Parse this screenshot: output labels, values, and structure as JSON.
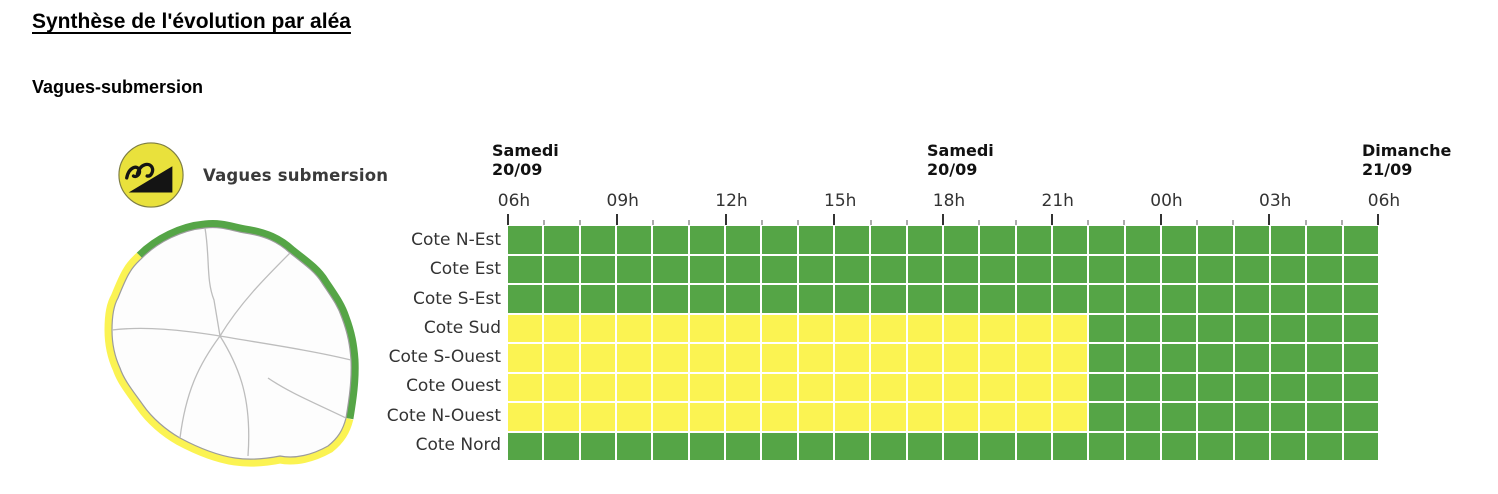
{
  "page": {
    "title": "Synthèse de l'évolution par aléa",
    "subtitle": "Vagues-submersion"
  },
  "hazard": {
    "label": "Vagues submersion",
    "icon": "waves-submersion-icon",
    "icon_circle_color": "#e9e13c",
    "icon_glyph_color": "#141414"
  },
  "chart_data": {
    "type": "heatmap",
    "x_unit": "hour",
    "hours_total": 24,
    "grid_line_color": "#ffffff",
    "date_headers": [
      {
        "day": "Samedi",
        "date": "20/09",
        "hour_index": 0
      },
      {
        "day": "Samedi",
        "date": "20/09",
        "hour_index": 12
      },
      {
        "day": "Dimanche",
        "date": "21/09",
        "hour_index": 24
      }
    ],
    "x_ticks": [
      {
        "label": "06h",
        "index": 0
      },
      {
        "label": "09h",
        "index": 3
      },
      {
        "label": "12h",
        "index": 6
      },
      {
        "label": "15h",
        "index": 9
      },
      {
        "label": "18h",
        "index": 12
      },
      {
        "label": "21h",
        "index": 15
      },
      {
        "label": "00h",
        "index": 18
      },
      {
        "label": "03h",
        "index": 21
      },
      {
        "label": "06h",
        "index": 24
      }
    ],
    "level_legend": {
      "G": {
        "name": "vert",
        "color": "#55a546"
      },
      "Y": {
        "name": "jaune",
        "color": "#fbf352"
      }
    },
    "rows": [
      {
        "label": "Cote N-Est",
        "levels": [
          "G",
          "G",
          "G",
          "G",
          "G",
          "G",
          "G",
          "G",
          "G",
          "G",
          "G",
          "G",
          "G",
          "G",
          "G",
          "G",
          "G",
          "G",
          "G",
          "G",
          "G",
          "G",
          "G",
          "G"
        ]
      },
      {
        "label": "Cote Est",
        "levels": [
          "G",
          "G",
          "G",
          "G",
          "G",
          "G",
          "G",
          "G",
          "G",
          "G",
          "G",
          "G",
          "G",
          "G",
          "G",
          "G",
          "G",
          "G",
          "G",
          "G",
          "G",
          "G",
          "G",
          "G"
        ]
      },
      {
        "label": "Cote S-Est",
        "levels": [
          "G",
          "G",
          "G",
          "G",
          "G",
          "G",
          "G",
          "G",
          "G",
          "G",
          "G",
          "G",
          "G",
          "G",
          "G",
          "G",
          "G",
          "G",
          "G",
          "G",
          "G",
          "G",
          "G",
          "G"
        ]
      },
      {
        "label": "Cote Sud",
        "levels": [
          "Y",
          "Y",
          "Y",
          "Y",
          "Y",
          "Y",
          "Y",
          "Y",
          "Y",
          "Y",
          "Y",
          "Y",
          "Y",
          "Y",
          "Y",
          "Y",
          "G",
          "G",
          "G",
          "G",
          "G",
          "G",
          "G",
          "G"
        ]
      },
      {
        "label": "Cote S-Ouest",
        "levels": [
          "Y",
          "Y",
          "Y",
          "Y",
          "Y",
          "Y",
          "Y",
          "Y",
          "Y",
          "Y",
          "Y",
          "Y",
          "Y",
          "Y",
          "Y",
          "Y",
          "G",
          "G",
          "G",
          "G",
          "G",
          "G",
          "G",
          "G"
        ]
      },
      {
        "label": "Cote Ouest",
        "levels": [
          "Y",
          "Y",
          "Y",
          "Y",
          "Y",
          "Y",
          "Y",
          "Y",
          "Y",
          "Y",
          "Y",
          "Y",
          "Y",
          "Y",
          "Y",
          "Y",
          "G",
          "G",
          "G",
          "G",
          "G",
          "G",
          "G",
          "G"
        ]
      },
      {
        "label": "Cote N-Ouest",
        "levels": [
          "Y",
          "Y",
          "Y",
          "Y",
          "Y",
          "Y",
          "Y",
          "Y",
          "Y",
          "Y",
          "Y",
          "Y",
          "Y",
          "Y",
          "Y",
          "Y",
          "G",
          "G",
          "G",
          "G",
          "G",
          "G",
          "G",
          "G"
        ]
      },
      {
        "label": "Cote Nord",
        "levels": [
          "G",
          "G",
          "G",
          "G",
          "G",
          "G",
          "G",
          "G",
          "G",
          "G",
          "G",
          "G",
          "G",
          "G",
          "G",
          "G",
          "G",
          "G",
          "G",
          "G",
          "G",
          "G",
          "G",
          "G"
        ]
      }
    ]
  },
  "map": {
    "coast_arcs": [
      {
        "name": "coast-arc-nord-est",
        "level": "G"
      },
      {
        "name": "coast-arc-sud-ouest",
        "level": "Y"
      }
    ]
  }
}
